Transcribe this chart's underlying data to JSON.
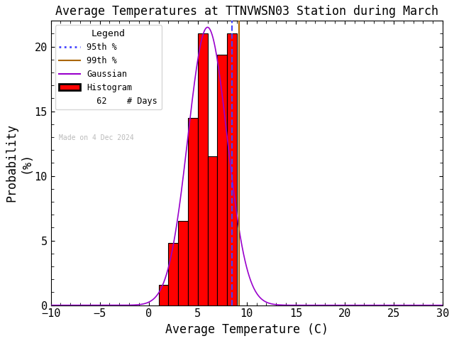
{
  "title": "Average Temperatures at TTNVWSN03 Station during March",
  "xlabel": "Average Temperature (C)",
  "ylabel": "Probability\n(%)",
  "xlim": [
    -10,
    30
  ],
  "ylim": [
    0,
    22
  ],
  "xticks": [
    -10,
    -5,
    0,
    5,
    10,
    15,
    20,
    25,
    30
  ],
  "yticks": [
    0,
    5,
    10,
    15,
    20
  ],
  "bin_edges": [
    1,
    2,
    3,
    4,
    5,
    6,
    7,
    8,
    9
  ],
  "bar_heights": [
    1.6,
    4.8,
    6.5,
    14.5,
    21.0,
    11.5,
    19.4,
    21.0
  ],
  "n_days": 62,
  "mean_temp": 6.0,
  "std_temp": 2.0,
  "gauss_peak": 21.5,
  "percentile_95": 8.5,
  "percentile_99": 9.2,
  "bar_color": "#FF0000",
  "bar_edgecolor": "#000000",
  "gaussian_color": "#9900CC",
  "p95_color": "#4444FF",
  "p99_color": "#AA6600",
  "legend_title": "Legend",
  "watermark": "Made on 4 Dec 2024",
  "background_color": "#FFFFFF",
  "title_fontsize": 12,
  "label_fontsize": 12,
  "tick_fontsize": 11,
  "font_family": "monospace"
}
